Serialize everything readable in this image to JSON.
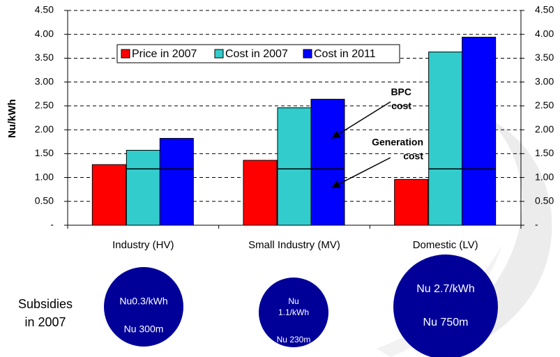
{
  "chart_data": {
    "type": "bar",
    "y_axis_label": "Nu/kWh",
    "categories": [
      "Industry (HV)",
      "Small Industry (MV)",
      "Domestic (LV)"
    ],
    "series": [
      {
        "name": "Price in 2007",
        "color": "#ff0000",
        "values": [
          1.27,
          1.36,
          0.96
        ]
      },
      {
        "name": "Cost in 2007",
        "color": "#33cccc",
        "values": [
          1.57,
          2.46,
          3.63
        ]
      },
      {
        "name": "Cost in 2011",
        "color": "#0000ff",
        "values": [
          1.82,
          2.64,
          3.94
        ]
      }
    ],
    "generation_cost": 1.18,
    "ylim": [
      0,
      4.5
    ],
    "yticks": [
      {
        "value": 0,
        "label": "-"
      },
      {
        "value": 0.5,
        "label": "0.50"
      },
      {
        "value": 1,
        "label": "1.00"
      },
      {
        "value": 1.5,
        "label": "1.50"
      },
      {
        "value": 2,
        "label": "2.00"
      },
      {
        "value": 2.5,
        "label": "2.50"
      },
      {
        "value": 3,
        "label": "3.00"
      },
      {
        "value": 3.5,
        "label": "3.50"
      },
      {
        "value": 4,
        "label": "4.00"
      },
      {
        "value": 4.5,
        "label": "4.50"
      }
    ],
    "y2lim": [
      0,
      4.5
    ],
    "y2ticks": [
      {
        "value": 0,
        "label": "-"
      },
      {
        "value": 0.5,
        "label": "0.50"
      },
      {
        "value": 1,
        "label": "1.00"
      },
      {
        "value": 1.5,
        "label": "1.50"
      },
      {
        "value": 2,
        "label": "2.00"
      },
      {
        "value": 2.5,
        "label": "2.50"
      },
      {
        "value": 3,
        "label": "3.00"
      },
      {
        "value": 3.5,
        "label": "3.50"
      },
      {
        "value": 4,
        "label": "4.00"
      },
      {
        "value": 4.5,
        "label": "4.50"
      }
    ],
    "grid": true,
    "legend": "top",
    "annotations": [
      [
        "BPC",
        "cost"
      ],
      [
        "Generation",
        "cost"
      ]
    ],
    "subsidies_label": [
      "Subsidies",
      "in 2007"
    ],
    "subsidies": [
      [
        "Nu0.3/kWh",
        "Nu 300m"
      ],
      [
        "Nu",
        "1.1/kWh",
        "Nu 230m"
      ],
      [
        "Nu 2.7/kWh",
        "Nu 750m"
      ]
    ],
    "subsidies_color": "#000099"
  }
}
